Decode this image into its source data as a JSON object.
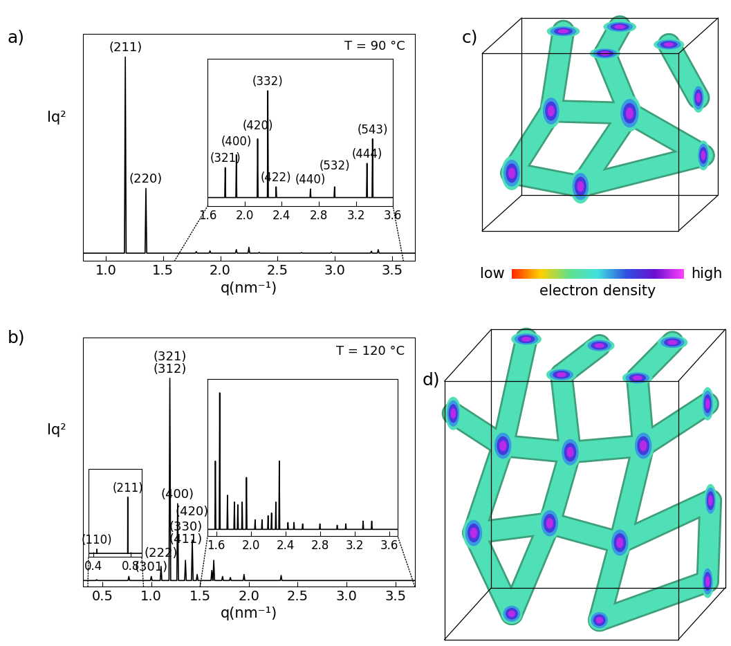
{
  "chart_data": [
    {
      "type": "line",
      "title": "a)",
      "annotation": "T = 90 °C",
      "xlabel": "q(nm⁻¹)",
      "ylabel": "Iq²",
      "xlim": [
        0.8,
        3.7
      ],
      "xticks": [
        1.0,
        1.5,
        2.0,
        2.5,
        3.0,
        3.5
      ],
      "ylim": [
        -0.04,
        1.12
      ],
      "tick_labels": "x",
      "color": "#000000",
      "peaks": {
        "x": [
          1.17,
          1.35,
          1.79,
          1.91,
          2.14,
          2.25,
          2.34,
          2.71,
          2.97,
          3.32,
          3.38
        ],
        "values": [
          1.0,
          0.33,
          0.008,
          0.012,
          0.018,
          0.03,
          0.004,
          0.003,
          0.004,
          0.01,
          0.018
        ],
        "labels": [
          "(211)",
          "(220)",
          null,
          null,
          null,
          null,
          null,
          null,
          null,
          null,
          null
        ]
      },
      "insets": [
        {
          "xlim": [
            1.6,
            3.6
          ],
          "xticks": [
            1.6,
            2.0,
            2.4,
            2.8,
            3.2,
            3.6
          ],
          "ylim": [
            -0.08,
            1.3
          ],
          "tick_labels": "x",
          "peaks": {
            "x": [
              1.79,
              1.91,
              2.14,
              2.25,
              2.34,
              2.71,
              2.97,
              3.32,
              3.38
            ],
            "values": [
              0.28,
              0.4,
              0.55,
              1.0,
              0.1,
              0.08,
              0.1,
              0.32,
              0.55
            ],
            "labels": [
              "(321)",
              "(400)",
              "(420)",
              "(332)",
              "(422)",
              "(440)",
              "(532)",
              "(444)",
              "(543)"
            ]
          }
        }
      ]
    },
    {
      "type": "line",
      "title": "b)",
      "annotation": "T = 120 °C",
      "xlabel": "q(nm⁻¹)",
      "ylabel": "Iq²",
      "xlim": [
        0.3,
        3.7
      ],
      "xticks": [
        0.5,
        1.0,
        1.5,
        2.0,
        2.5,
        3.0,
        3.5
      ],
      "ylim": [
        -0.03,
        1.2
      ],
      "tick_labels": "x",
      "color": "#000000",
      "peaks": {
        "x": [
          0.44,
          0.77,
          1.0,
          1.1,
          1.19,
          1.27,
          1.35,
          1.42,
          1.47,
          1.62,
          1.64,
          1.73,
          1.81,
          1.95,
          2.33
        ],
        "values": [
          0.004,
          0.02,
          0.02,
          0.07,
          1.0,
          0.38,
          0.1,
          0.2,
          0.03,
          0.05,
          0.1,
          0.02,
          0.015,
          0.03,
          0.025
        ],
        "labels": [
          null,
          null,
          "(301)",
          "(222)",
          "(321)\n(312)",
          "(400)",
          "(330)\n(411)",
          "(420)",
          null,
          null,
          null,
          null,
          null,
          null,
          null
        ]
      },
      "insets": [
        {
          "xlim": [
            0.35,
            0.92
          ],
          "xticks": [
            0.4,
            0.8
          ],
          "ylim": [
            -0.05,
            1.2
          ],
          "tick_labels": "x",
          "peaks": {
            "x": [
              0.44,
              0.77
            ],
            "values": [
              0.06,
              0.8
            ],
            "labels": [
              "(110)",
              "(211)"
            ]
          }
        },
        {
          "xlim": [
            1.5,
            3.7
          ],
          "xticks": [
            1.6,
            2.0,
            2.4,
            2.8,
            3.2,
            3.6
          ],
          "ylim": [
            -0.05,
            1.1
          ],
          "tick_labels": "x",
          "peaks": {
            "x": [
              1.59,
              1.64,
              1.73,
              1.81,
              1.85,
              1.9,
              1.95,
              2.05,
              2.13,
              2.2,
              2.24,
              2.29,
              2.33,
              2.43,
              2.5,
              2.6,
              2.8,
              3.0,
              3.1,
              3.3,
              3.4
            ],
            "values": [
              0.5,
              1.0,
              0.25,
              0.2,
              0.18,
              0.2,
              0.38,
              0.07,
              0.07,
              0.1,
              0.12,
              0.2,
              0.5,
              0.05,
              0.05,
              0.04,
              0.04,
              0.03,
              0.04,
              0.06,
              0.06
            ],
            "labels": [
              null,
              null,
              null,
              null,
              null,
              null,
              null,
              null,
              null,
              null,
              null,
              null,
              null,
              null,
              null,
              null,
              null,
              null,
              null,
              null,
              null
            ]
          }
        }
      ]
    }
  ],
  "images": [
    {
      "title": "c)"
    },
    {
      "title": "d)"
    }
  ],
  "colorbar": {
    "low": "low",
    "high": "high",
    "title": "electron density",
    "colors": [
      "#ff2a00",
      "#ffd200",
      "#5fe08a",
      "#40e0e0",
      "#3050e0",
      "#6a10d0",
      "#ff40ff"
    ]
  }
}
